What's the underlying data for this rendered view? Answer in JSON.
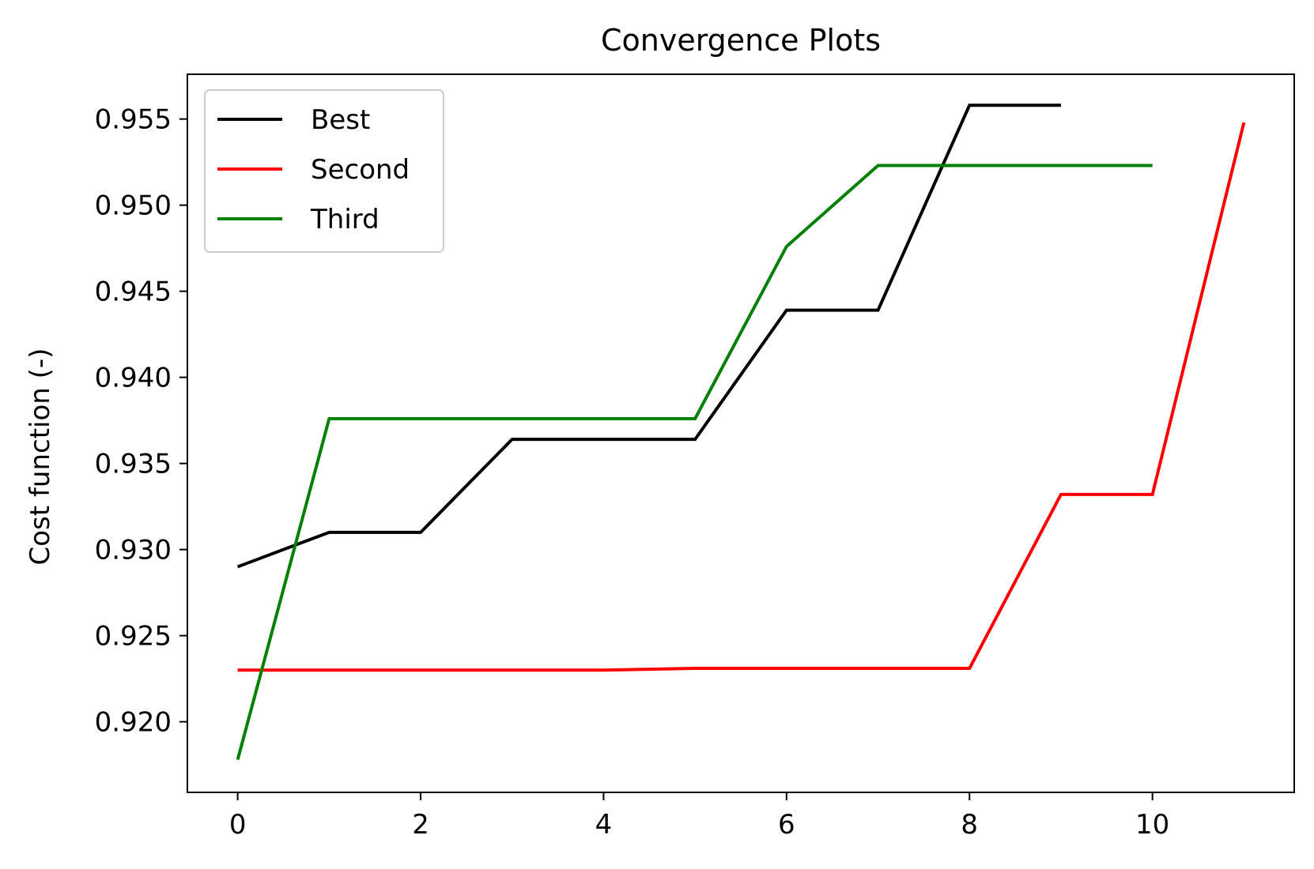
{
  "chart_data": {
    "type": "line",
    "title": "Convergence Plots",
    "xlabel": "",
    "ylabel": "Cost function (-)",
    "xlim": [
      -0.55,
      11.55
    ],
    "ylim": [
      0.9159,
      0.9576
    ],
    "xticks": [
      0,
      2,
      4,
      6,
      8,
      10
    ],
    "xtick_labels": [
      "0",
      "2",
      "4",
      "6",
      "8",
      "10"
    ],
    "yticks": [
      0.92,
      0.925,
      0.93,
      0.935,
      0.94,
      0.945,
      0.95,
      0.955
    ],
    "ytick_labels": [
      "0.920",
      "0.925",
      "0.930",
      "0.935",
      "0.940",
      "0.945",
      "0.950",
      "0.955"
    ],
    "grid": false,
    "legend_position": "upper-left",
    "series": [
      {
        "name": "Best",
        "color": "#000000",
        "x": [
          0,
          1,
          2,
          3,
          4,
          5,
          6,
          7,
          8,
          9
        ],
        "y": [
          0.929,
          0.931,
          0.931,
          0.9364,
          0.9364,
          0.9364,
          0.9439,
          0.9439,
          0.9558,
          0.9558
        ]
      },
      {
        "name": "Second",
        "color": "#ff0000",
        "x": [
          0,
          1,
          2,
          3,
          4,
          5,
          6,
          7,
          8,
          9,
          10,
          11
        ],
        "y": [
          0.923,
          0.923,
          0.923,
          0.923,
          0.923,
          0.9231,
          0.9231,
          0.9231,
          0.9231,
          0.9332,
          0.9332,
          0.9548
        ]
      },
      {
        "name": "Third",
        "color": "#008000",
        "x": [
          0,
          1,
          2,
          3,
          4,
          5,
          6,
          7,
          8,
          9,
          10
        ],
        "y": [
          0.9178,
          0.9376,
          0.9376,
          0.9376,
          0.9376,
          0.9376,
          0.9476,
          0.9523,
          0.9523,
          0.9523,
          0.9523
        ]
      }
    ]
  }
}
